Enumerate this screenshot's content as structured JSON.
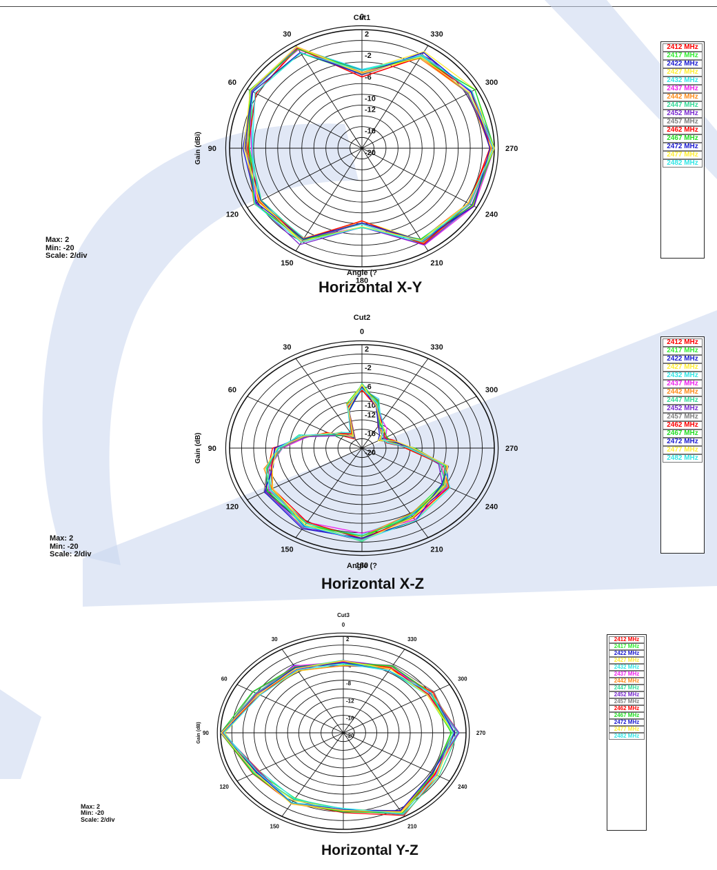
{
  "page": {
    "watermark_color": "#c9d5ee"
  },
  "colors": [
    "#ff0000",
    "#33ee33",
    "#1a1ad0",
    "#ffee33",
    "#33e6e6",
    "#ee22ee",
    "#ff8c1a",
    "#33dd99",
    "#7a2ad0",
    "#808080",
    "#ff0000",
    "#22dd22",
    "#1a1ad0",
    "#ffee33",
    "#33e6e6"
  ],
  "legend_labels": [
    "2412 MHz",
    "2417 MHz",
    "2422 MHz",
    "2427 MHz",
    "2432 MHz",
    "2437 MHz",
    "2442 MHz",
    "2447 MHz",
    "2452 MHz",
    "2457 MHz",
    "2462 MHz",
    "2467 MHz",
    "2472 MHz",
    "2477 MHz",
    "2482 MHz"
  ],
  "stats": {
    "max": "Max: 2",
    "min": "Min: -20",
    "scale": "Scale: 2/div"
  },
  "chart_data": [
    {
      "type": "polar-line",
      "title": "Cut1",
      "caption": "Horizontal  X-Y",
      "ylabel": "Gain (dBi)",
      "xlabel": "Angle (?",
      "rlim": [
        -20,
        2
      ],
      "r_step": 2,
      "r_tick_labels": [
        "2",
        "-2",
        "-6",
        "-10",
        "-12",
        "-16",
        "-20"
      ],
      "angle_tick_labels": [
        "0",
        "30",
        "60",
        "90",
        "120",
        "150",
        "180",
        "210",
        "240",
        "270",
        "300",
        "330"
      ],
      "angles_deg": [
        0,
        30,
        60,
        90,
        120,
        150,
        180,
        210,
        240,
        270,
        300,
        330
      ],
      "base_gain": [
        -6,
        1,
        1,
        -1,
        0,
        0,
        -6,
        0,
        1,
        2,
        1,
        0
      ],
      "series_jitter": 0.8,
      "series": [
        "2412 MHz",
        "2417 MHz",
        "2422 MHz",
        "2427 MHz",
        "2432 MHz",
        "2437 MHz",
        "2442 MHz",
        "2447 MHz",
        "2452 MHz",
        "2457 MHz",
        "2462 MHz",
        "2467 MHz",
        "2472 MHz",
        "2477 MHz",
        "2482 MHz"
      ]
    },
    {
      "type": "polar-line",
      "title": "Cut2",
      "caption": "Horizontal X-Z",
      "ylabel": "Gain (dB)",
      "xlabel": "Angle (?",
      "rlim": [
        -20,
        2
      ],
      "r_step": 2,
      "r_tick_labels": [
        "2",
        "-2",
        "-6",
        "-10",
        "-12",
        "-16",
        "-20"
      ],
      "angle_tick_labels": [
        "0",
        "30",
        "60",
        "90",
        "120",
        "150",
        "180",
        "210",
        "240",
        "270",
        "300",
        "330"
      ],
      "angles_deg": [
        0,
        15,
        30,
        45,
        60,
        75,
        90,
        105,
        120,
        150,
        180,
        210,
        240,
        255,
        270,
        285,
        300,
        315,
        330,
        345
      ],
      "base_gain": [
        -7,
        -11,
        -17,
        -16,
        -14,
        -10,
        -6,
        -4,
        -2,
        -1,
        -1,
        -3,
        -4,
        -6,
        -12,
        -15,
        -16,
        -15,
        -14,
        -10
      ],
      "series_jitter": 0.9,
      "series": [
        "2412 MHz",
        "2417 MHz",
        "2422 MHz",
        "2427 MHz",
        "2432 MHz",
        "2437 MHz",
        "2442 MHz",
        "2447 MHz",
        "2452 MHz",
        "2457 MHz",
        "2462 MHz",
        "2467 MHz",
        "2472 MHz",
        "2477 MHz",
        "2482 MHz"
      ]
    },
    {
      "type": "polar-line",
      "title": "Cut3",
      "caption": "Horizontal Y-Z",
      "ylabel": "Gain (dB)",
      "xlabel": "",
      "rlim": [
        -20,
        2
      ],
      "r_step": 2,
      "r_tick_labels": [
        "2",
        "-4",
        "-8",
        "-12",
        "-16",
        "-20"
      ],
      "angle_tick_labels": [
        "0",
        "30",
        "60",
        "90",
        "120",
        "150",
        "180",
        "210",
        "240",
        "270",
        "300",
        "330"
      ],
      "angles_deg": [
        0,
        30,
        60,
        90,
        120,
        150,
        180,
        210,
        240,
        270,
        300,
        330
      ],
      "base_gain": [
        -4,
        -3,
        -2,
        2,
        -2,
        -2,
        -2,
        1,
        -1,
        0,
        -2,
        -3
      ],
      "series_jitter": 0.8,
      "series": [
        "2412 MHz",
        "2417 MHz",
        "2422 MHz",
        "2427 MHz",
        "2432 MHz",
        "2437 MHz",
        "2442 MHz",
        "2447 MHz",
        "2452 MHz",
        "2457 MHz",
        "2462 MHz",
        "2467 MHz",
        "2472 MHz",
        "2477 MHz",
        "2482 MHz"
      ]
    }
  ]
}
